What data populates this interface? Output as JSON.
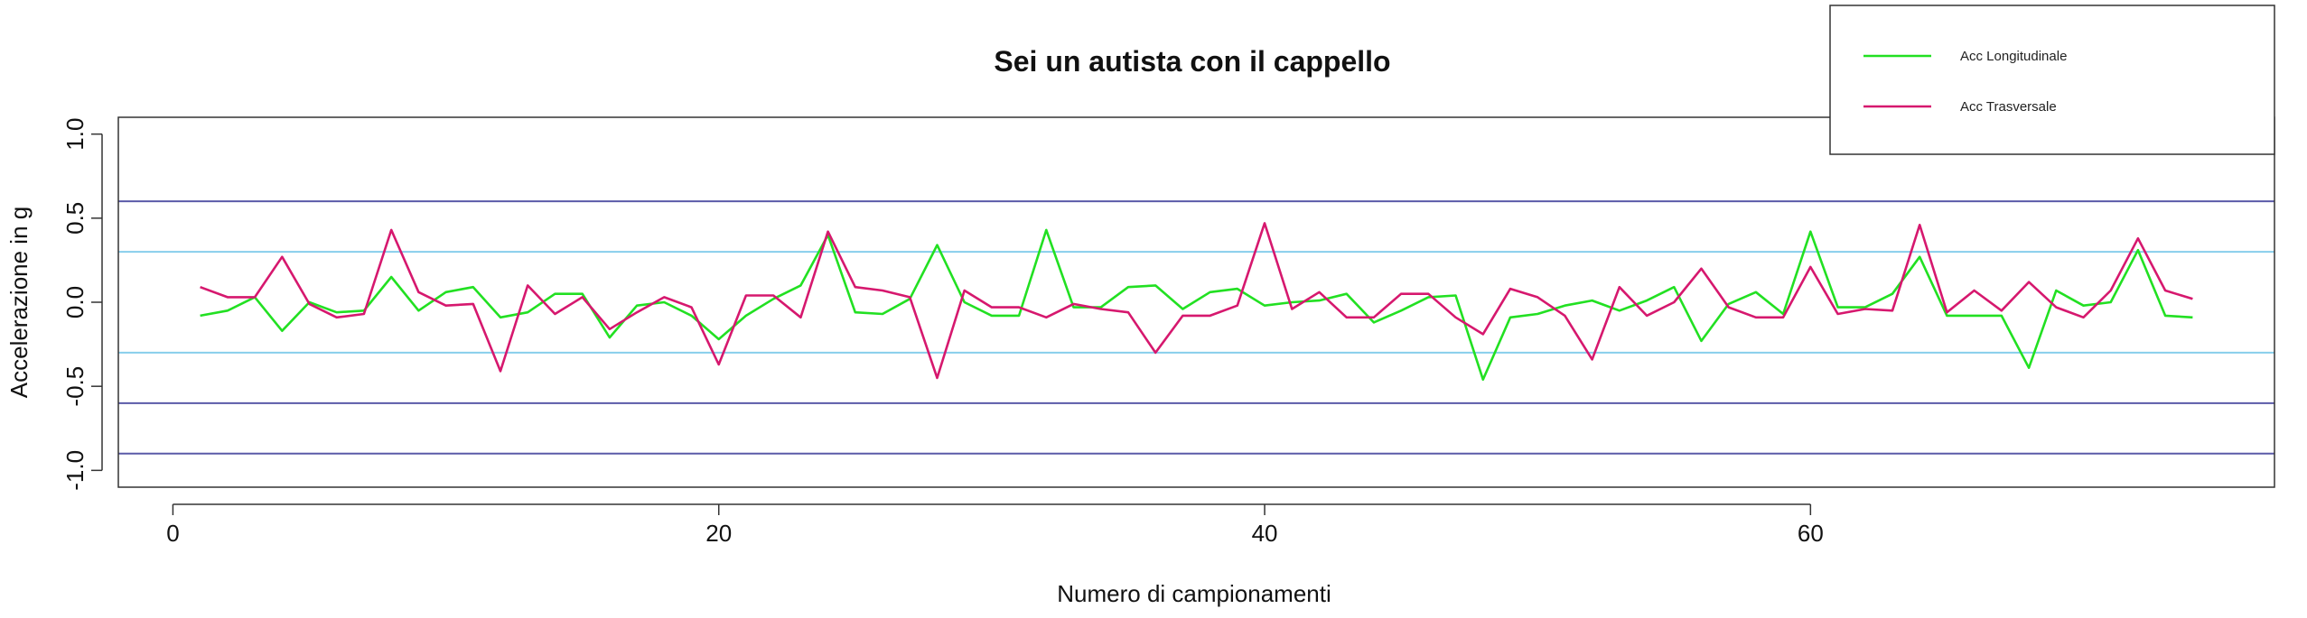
{
  "chart_data": {
    "type": "line",
    "title": "Sei un autista con il cappello",
    "xlabel": "Numero di campionamenti",
    "ylabel": "Accelerazione in g",
    "xlim": [
      -2,
      77
    ],
    "ylim": [
      -1.1,
      1.1
    ],
    "x_ticks": [
      0,
      20,
      40,
      60
    ],
    "x_tick_labels": [
      "0",
      "20",
      "40",
      "60"
    ],
    "y_ticks": [
      -1.0,
      -0.5,
      0.0,
      0.5,
      1.0
    ],
    "y_tick_labels": [
      "-1.0",
      "-0.5",
      "0.0",
      "0.5",
      "1.0"
    ],
    "legend_position": "top-right",
    "grid": false,
    "reference_lines": [
      {
        "y": 0.6,
        "color": "#5a5aa8"
      },
      {
        "y": 0.3,
        "color": "#87ceeb"
      },
      {
        "y": -0.3,
        "color": "#87ceeb"
      },
      {
        "y": -0.6,
        "color": "#5a5aa8"
      },
      {
        "y": -0.9,
        "color": "#5a5aa8"
      }
    ],
    "x": [
      1,
      2,
      3,
      4,
      5,
      6,
      7,
      8,
      9,
      10,
      11,
      12,
      13,
      14,
      15,
      16,
      17,
      18,
      19,
      20,
      21,
      22,
      23,
      24,
      25,
      26,
      27,
      28,
      29,
      30,
      31,
      32,
      33,
      34,
      35,
      36,
      37,
      38,
      39,
      40,
      41,
      42,
      43,
      44,
      45,
      46,
      47,
      48,
      49,
      50,
      51,
      52,
      53,
      54,
      55,
      56,
      57,
      58,
      59,
      60,
      61,
      62,
      63,
      64,
      65,
      66,
      67,
      68,
      69,
      70,
      71,
      72,
      73,
      74
    ],
    "series": [
      {
        "name": "Acc Longitudinale",
        "color": "#22e022",
        "values": [
          -0.08,
          -0.05,
          0.03,
          -0.17,
          0.0,
          -0.06,
          -0.05,
          0.15,
          -0.05,
          0.06,
          0.09,
          -0.09,
          -0.06,
          0.05,
          0.05,
          -0.21,
          -0.02,
          0.0,
          -0.08,
          -0.22,
          -0.08,
          0.02,
          0.1,
          0.4,
          -0.06,
          -0.07,
          0.02,
          0.34,
          0.0,
          -0.08,
          -0.08,
          0.43,
          -0.03,
          -0.03,
          0.09,
          0.1,
          -0.04,
          0.06,
          0.08,
          -0.02,
          0.0,
          0.01,
          0.05,
          -0.12,
          -0.05,
          0.03,
          0.04,
          -0.46,
          -0.09,
          -0.07,
          -0.02,
          0.01,
          -0.05,
          0.01,
          0.09,
          -0.23,
          -0.01,
          0.06,
          -0.07,
          0.42,
          -0.03,
          -0.03,
          0.05,
          0.27,
          -0.08,
          -0.08,
          -0.08,
          -0.39,
          0.07,
          -0.02,
          0.0,
          0.31,
          -0.08,
          -0.09
        ]
      },
      {
        "name": "Acc Trasversale",
        "color": "#d6186e",
        "values": [
          0.09,
          0.03,
          0.03,
          0.27,
          -0.01,
          -0.09,
          -0.07,
          0.43,
          0.06,
          -0.02,
          -0.01,
          -0.41,
          0.1,
          -0.07,
          0.03,
          -0.16,
          -0.06,
          0.03,
          -0.03,
          -0.37,
          0.04,
          0.04,
          -0.09,
          0.42,
          0.09,
          0.07,
          0.03,
          -0.45,
          0.07,
          -0.03,
          -0.03,
          -0.09,
          -0.01,
          -0.04,
          -0.06,
          -0.3,
          -0.08,
          -0.08,
          -0.02,
          0.47,
          -0.04,
          0.06,
          -0.09,
          -0.09,
          0.05,
          0.05,
          -0.09,
          -0.19,
          0.08,
          0.03,
          -0.08,
          -0.34,
          0.09,
          -0.08,
          0.0,
          0.2,
          -0.03,
          -0.09,
          -0.09,
          0.21,
          -0.07,
          -0.04,
          -0.05,
          0.46,
          -0.06,
          0.07,
          -0.05,
          0.12,
          -0.03,
          -0.09,
          0.07,
          0.38,
          0.07,
          0.02
        ]
      }
    ]
  }
}
